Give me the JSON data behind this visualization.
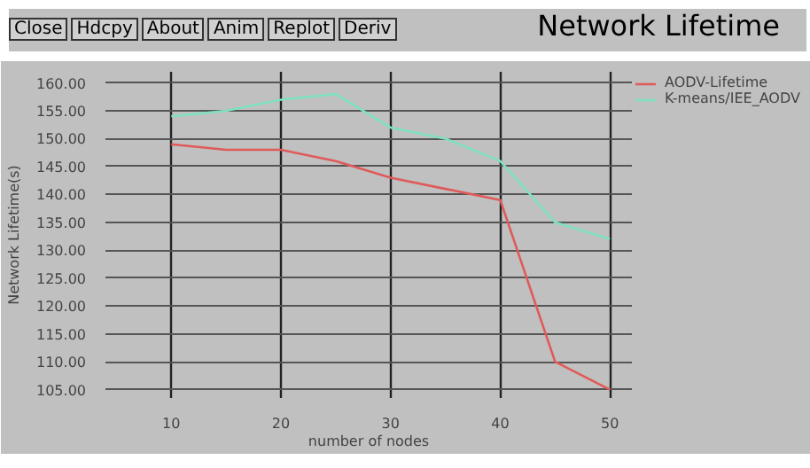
{
  "chart_data": {
    "type": "line",
    "title": "Network Lifetime",
    "xlabel": "number of nodes",
    "ylabel": "Network Lifetime(s)",
    "annotations": [
      "Close",
      "Hdcpy",
      "About",
      "Anim",
      "Replot",
      "Deriv"
    ],
    "x": [
      10,
      15,
      20,
      25,
      30,
      35,
      40,
      45,
      50
    ],
    "series": [
      {
        "name": "AODV-Lifetime",
        "color": "#e05a5a",
        "values": [
          149,
          148,
          148,
          146,
          143,
          141,
          139,
          110,
          105
        ]
      },
      {
        "name": "K-means/IEE_AODV",
        "color": "#7fe0c0",
        "values": [
          154,
          155,
          157,
          158,
          152,
          150,
          146,
          135,
          132
        ]
      }
    ],
    "xlim": [
      4,
      52
    ],
    "ylim": [
      103.5,
      162
    ],
    "xticks": [
      10,
      20,
      30,
      40,
      50
    ],
    "yticks": [
      {
        "value": 105,
        "label": "105.00"
      },
      {
        "value": 110,
        "label": "110.00"
      },
      {
        "value": 115,
        "label": "115.00"
      },
      {
        "value": 120,
        "label": "120.00"
      },
      {
        "value": 125,
        "label": "125.00"
      },
      {
        "value": 130,
        "label": "130.00"
      },
      {
        "value": 135,
        "label": "135.00"
      },
      {
        "value": 140,
        "label": "140.00"
      },
      {
        "value": 145,
        "label": "145.00"
      },
      {
        "value": 150,
        "label": "150.00"
      },
      {
        "value": 155,
        "label": "155.00"
      },
      {
        "value": 160,
        "label": "160.00"
      }
    ],
    "grid": true,
    "legend": "top right",
    "marker": "none",
    "line_style": "solid"
  }
}
